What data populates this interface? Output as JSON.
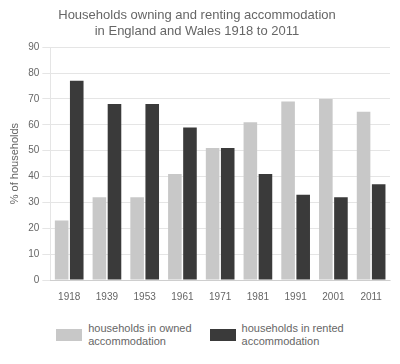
{
  "chart_data": {
    "type": "bar",
    "title": "Households owning and renting accommodation\nin England and Wales 1918 to 2011",
    "y_label": "% of households",
    "categories": [
      "1918",
      "1939",
      "1953",
      "1961",
      "1971",
      "1981",
      "1991",
      "2001",
      "2011"
    ],
    "series": [
      {
        "name": "households in owned\naccommodation",
        "color": "#c8c8c8",
        "values": [
          23,
          32,
          32,
          41,
          51,
          61,
          69,
          70,
          65
        ]
      },
      {
        "name": "households in rented\naccommodation",
        "color": "#3a3a3a",
        "values": [
          77,
          68,
          68,
          59,
          51,
          41,
          33,
          32,
          37
        ]
      }
    ],
    "ylim": [
      0,
      90
    ],
    "yticks": [
      0,
      10,
      20,
      30,
      40,
      50,
      60,
      70,
      80,
      90
    ],
    "grid": true,
    "legend": "bottom"
  }
}
